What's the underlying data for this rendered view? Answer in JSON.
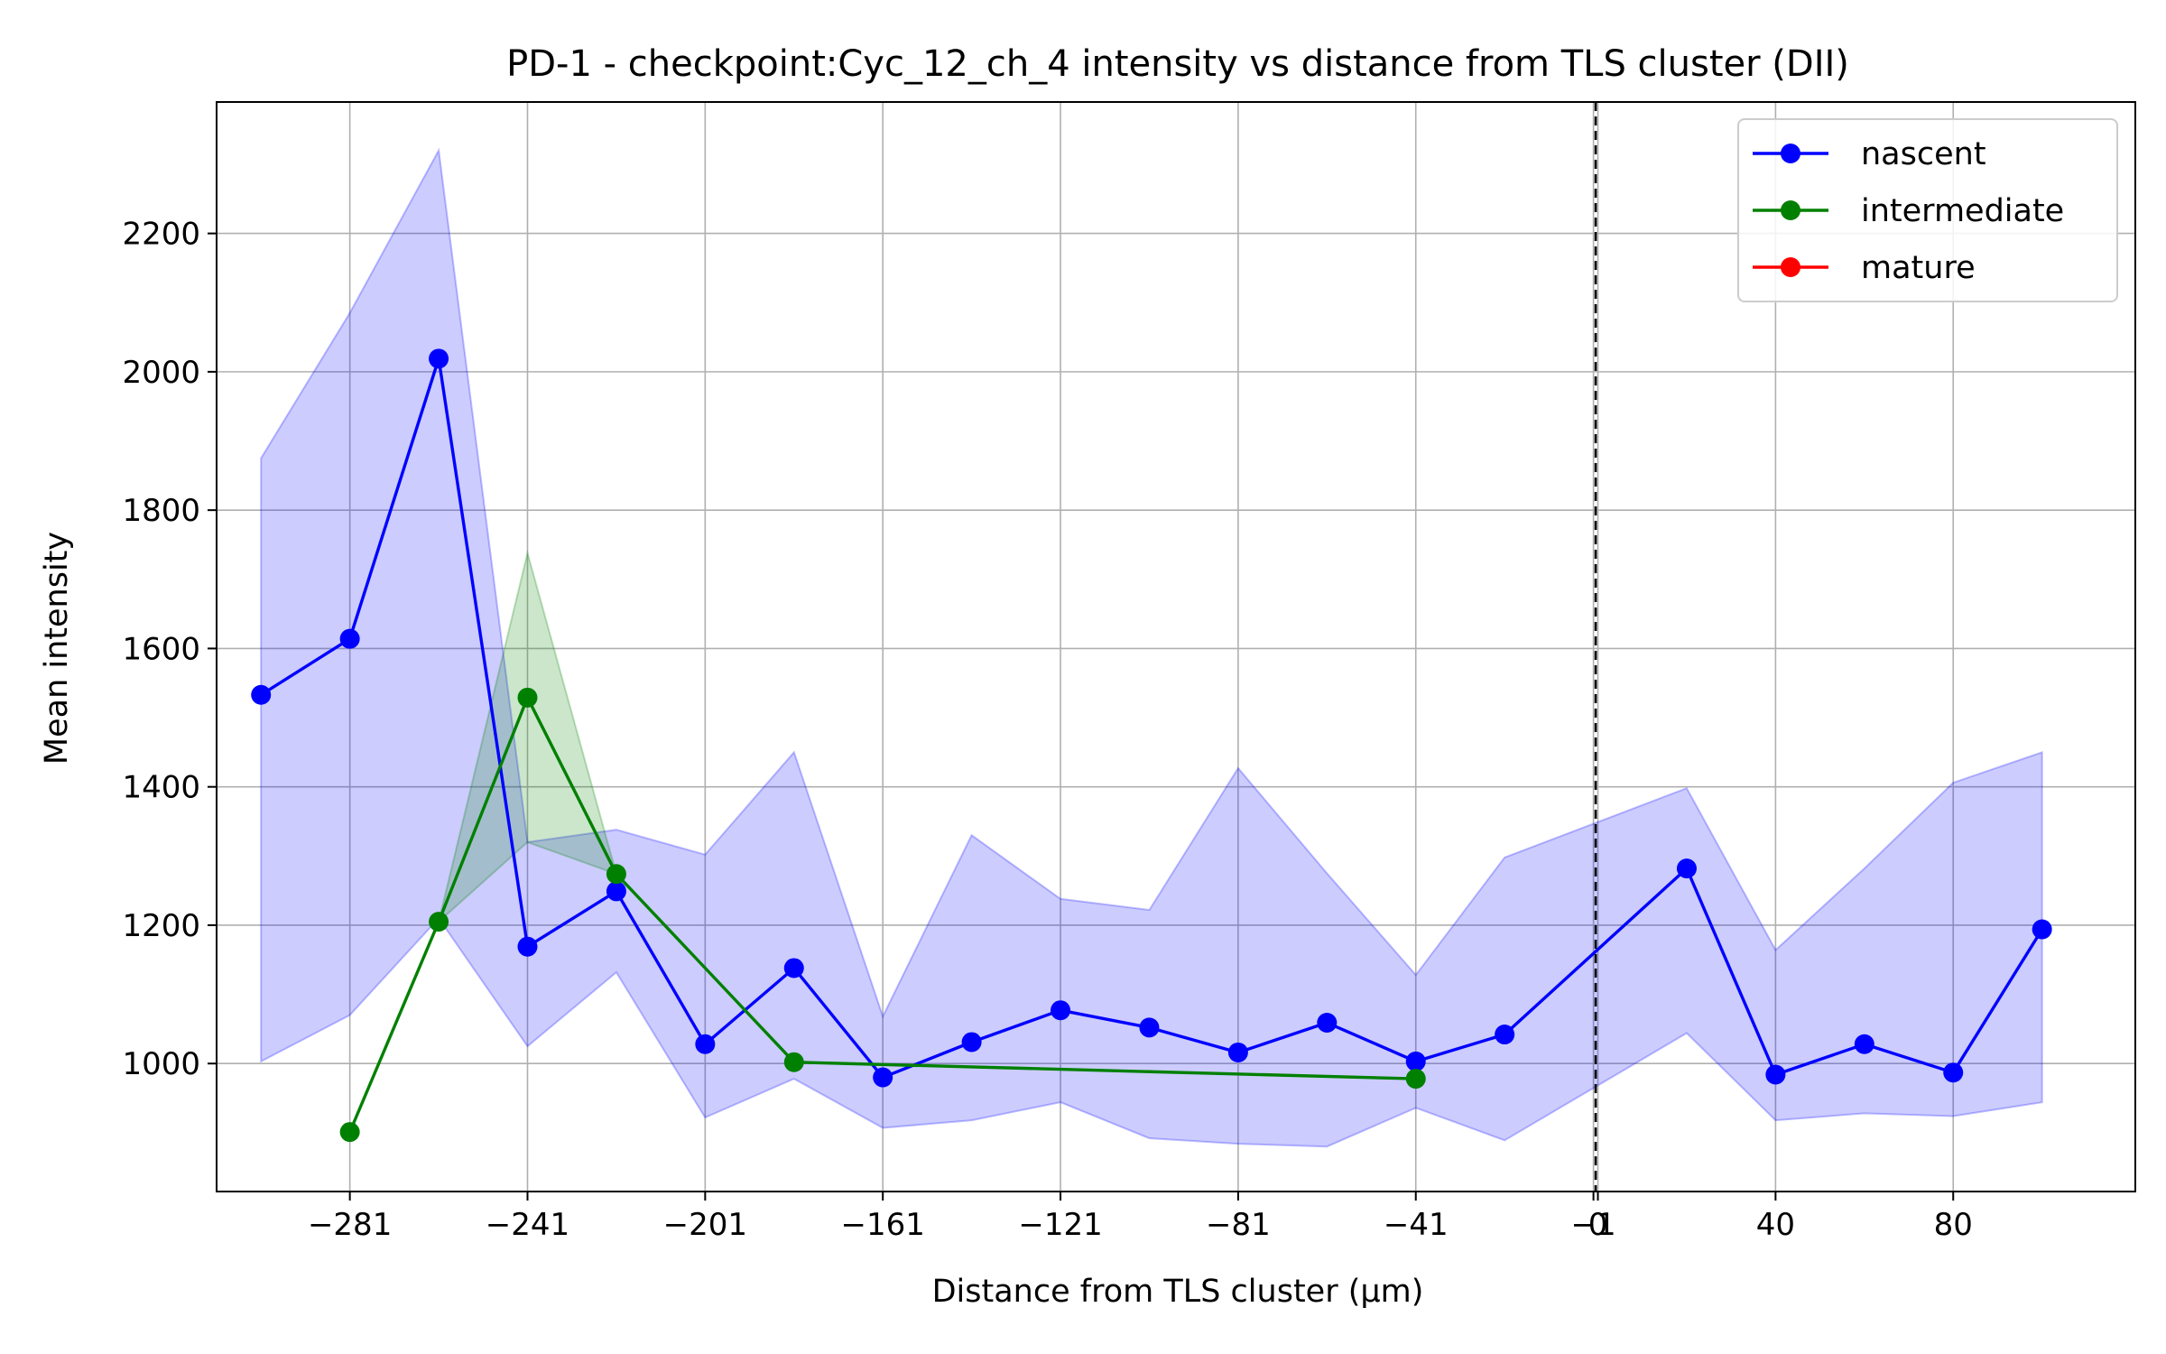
{
  "chart_data": {
    "type": "line",
    "title": "PD-1 - checkpoint:Cyc_12_ch_4 intensity vs distance from TLS cluster (DII)",
    "xlabel": "Distance from TLS cluster (μm)",
    "ylabel": "Mean intensity",
    "xlim": [
      -311,
      121
    ],
    "ylim": [
      815,
      2390
    ],
    "x_ticks": [
      {
        "value": -281,
        "label": "−281"
      },
      {
        "value": -241,
        "label": "−241"
      },
      {
        "value": -201,
        "label": "−201"
      },
      {
        "value": -161,
        "label": "−161"
      },
      {
        "value": -121,
        "label": "−121"
      },
      {
        "value": -81,
        "label": "−81"
      },
      {
        "value": -41,
        "label": "−41"
      },
      {
        "value": -1,
        "label": "−1"
      },
      {
        "value": 0,
        "label": "0"
      },
      {
        "value": 40,
        "label": "40"
      },
      {
        "value": 80,
        "label": "80"
      }
    ],
    "y_ticks": [
      {
        "value": 1000,
        "label": "1000"
      },
      {
        "value": 1200,
        "label": "1200"
      },
      {
        "value": 1400,
        "label": "1400"
      },
      {
        "value": 1600,
        "label": "1600"
      },
      {
        "value": 1800,
        "label": "1800"
      },
      {
        "value": 2000,
        "label": "2000"
      },
      {
        "value": 2200,
        "label": "2200"
      }
    ],
    "grid": true,
    "legend_position": "top-right",
    "vertical_line": {
      "x": -0.5,
      "style": "dashed",
      "color": "#000000"
    },
    "series": [
      {
        "name": "nascent",
        "color": "#0000ff",
        "x": [
          -301,
          -281,
          -261,
          -241,
          -221,
          -201,
          -181,
          -161,
          -141,
          -121,
          -101,
          -81,
          -61,
          -41,
          -21,
          20,
          40,
          60,
          80,
          100
        ],
        "y": [
          1533,
          1614,
          2019,
          1169,
          1249,
          1028,
          1138,
          980,
          1031,
          1077,
          1052,
          1016,
          1059,
          1003,
          1042,
          1282,
          984,
          1028,
          987,
          1194
        ],
        "band_upper": [
          1875,
          2085,
          2320,
          1320,
          1338,
          1302,
          1450,
          1068,
          1330,
          1238,
          1222,
          1427,
          1275,
          1128,
          1298,
          1398,
          1164,
          1282,
          1406,
          1450
        ],
        "band_lower": [
          1003,
          1070,
          1210,
          1025,
          1132,
          922,
          978,
          907,
          918,
          944,
          892,
          884,
          880,
          936,
          889,
          1044,
          918,
          928,
          924,
          944
        ]
      },
      {
        "name": "intermediate",
        "color": "#008000",
        "x": [
          -281,
          -261,
          -241,
          -221,
          -181,
          -41
        ],
        "y": [
          901,
          1205,
          1529,
          1274,
          1002,
          978
        ],
        "band_upper": [
          901,
          1205,
          1738,
          1274,
          1002,
          978
        ],
        "band_lower": [
          901,
          1205,
          1320,
          1274,
          1002,
          978
        ]
      },
      {
        "name": "mature",
        "color": "#ff0000",
        "x": [],
        "y": []
      }
    ]
  }
}
